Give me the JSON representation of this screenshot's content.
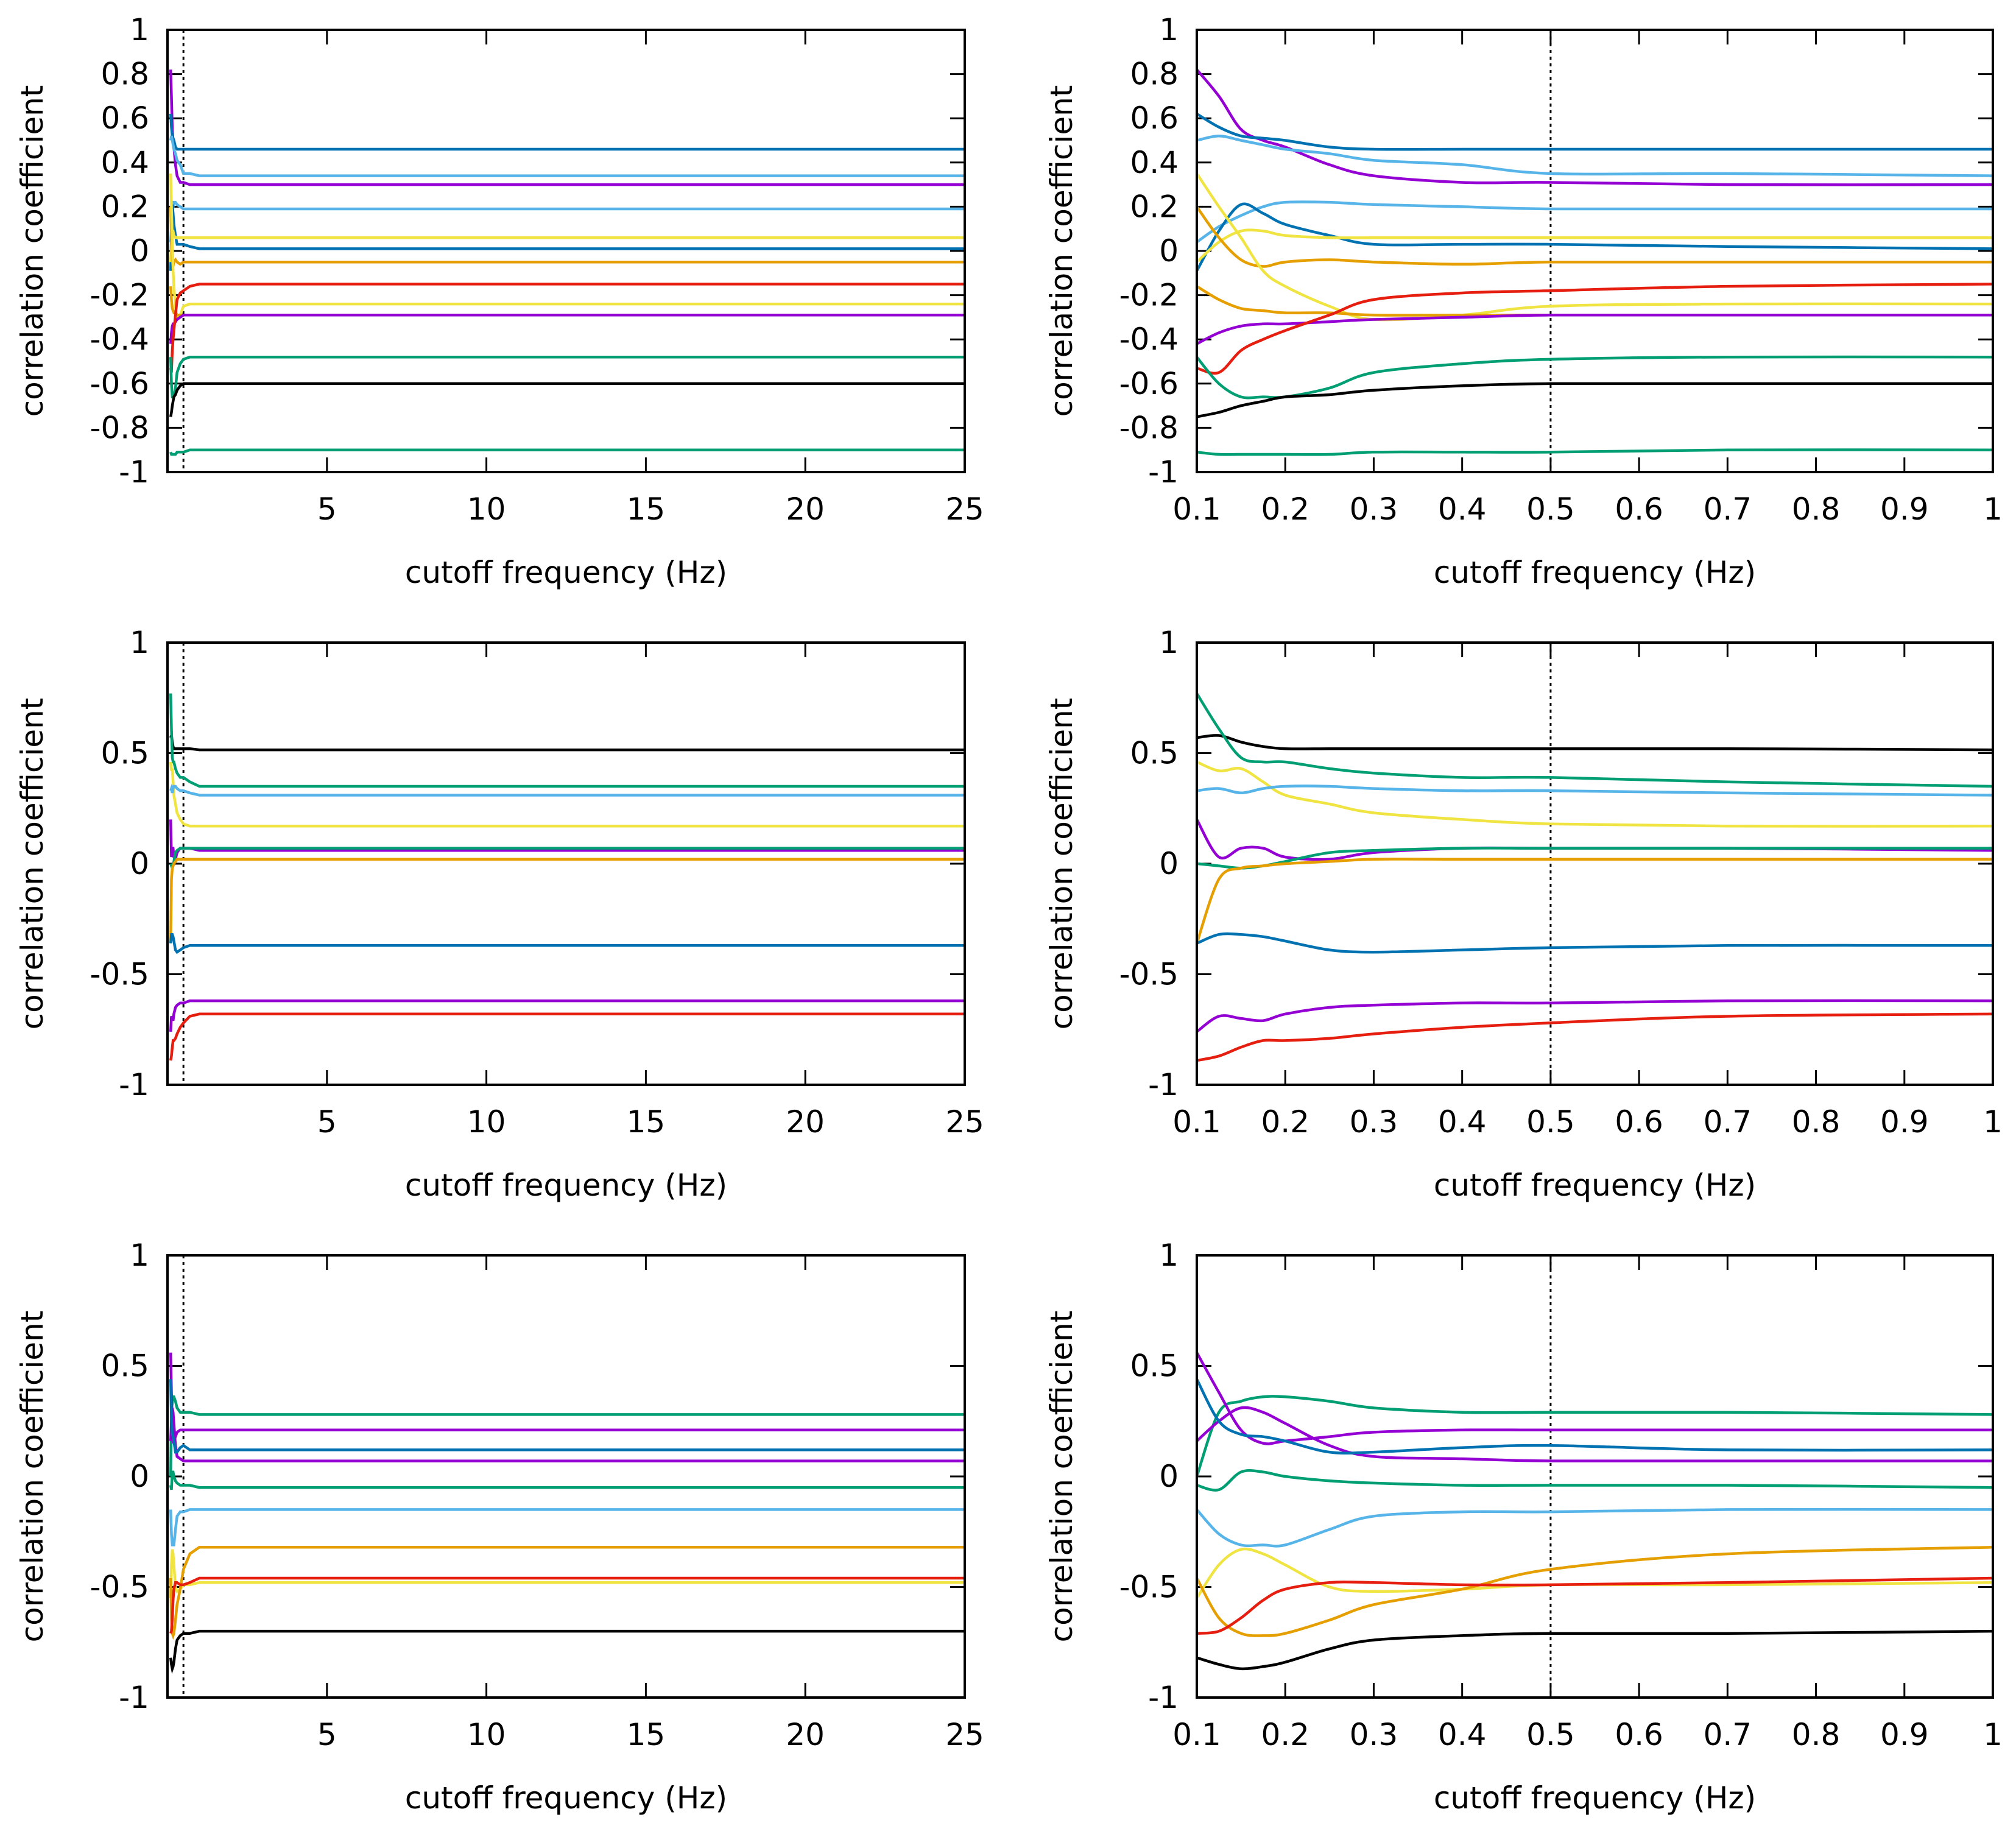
{
  "chart_data": [
    {
      "type": "line",
      "row": 1,
      "xlabel": "cutoff frequency (Hz)",
      "ylabel": "correlation coefficient",
      "ylim": [
        -1,
        1
      ],
      "yticks": [
        "-1",
        "-0.8",
        "-0.6",
        "-0.4",
        "-0.2",
        "0",
        "0.2",
        "0.4",
        "0.6",
        "0.8",
        "1"
      ],
      "panels": [
        {
          "xlim": [
            0,
            25
          ],
          "xticks": [
            "5",
            "10",
            "15",
            "20",
            "25"
          ],
          "vline": 0.5
        },
        {
          "xlim": [
            0.1,
            1
          ],
          "xticks": [
            "0.1",
            "0.2",
            "0.3",
            "0.4",
            "0.5",
            "0.6",
            "0.7",
            "0.8",
            "0.9",
            "1"
          ],
          "vline": 0.5
        }
      ],
      "x": [
        0.1,
        0.125,
        0.15,
        0.175,
        0.2,
        0.25,
        0.3,
        0.4,
        0.5,
        0.7,
        1.0
      ],
      "series": [
        {
          "color": "#9400d3",
          "y": [
            0.82,
            0.7,
            0.55,
            0.5,
            0.47,
            0.39,
            0.34,
            0.31,
            0.31,
            0.3,
            0.3
          ]
        },
        {
          "color": "#0072b2",
          "y": [
            0.62,
            0.56,
            0.52,
            0.51,
            0.5,
            0.47,
            0.46,
            0.46,
            0.46,
            0.46,
            0.46
          ]
        },
        {
          "color": "#56b4e9",
          "y": [
            0.5,
            0.52,
            0.5,
            0.48,
            0.46,
            0.44,
            0.41,
            0.39,
            0.35,
            0.35,
            0.34
          ]
        },
        {
          "color": "#56b4e9",
          "y": [
            0.04,
            0.11,
            0.16,
            0.2,
            0.22,
            0.22,
            0.21,
            0.2,
            0.19,
            0.19,
            0.19
          ]
        },
        {
          "color": "#0072b2",
          "y": [
            -0.09,
            0.09,
            0.21,
            0.17,
            0.12,
            0.07,
            0.03,
            0.03,
            0.03,
            0.02,
            0.01
          ]
        },
        {
          "color": "#f0e442",
          "y": [
            -0.05,
            0.04,
            0.09,
            0.09,
            0.07,
            0.06,
            0.06,
            0.06,
            0.06,
            0.06,
            0.06
          ]
        },
        {
          "color": "#e69f00",
          "y": [
            0.2,
            0.06,
            -0.04,
            -0.07,
            -0.05,
            -0.04,
            -0.05,
            -0.06,
            -0.05,
            -0.05,
            -0.05
          ]
        },
        {
          "color": "#f0e442",
          "y": [
            0.35,
            0.2,
            0.06,
            -0.09,
            -0.16,
            -0.25,
            -0.31,
            -0.29,
            -0.25,
            -0.24,
            -0.24
          ]
        },
        {
          "color": "#e69f00",
          "y": [
            -0.16,
            -0.22,
            -0.26,
            -0.27,
            -0.28,
            -0.28,
            -0.29,
            -0.29,
            -0.29,
            -0.29,
            -0.29
          ]
        },
        {
          "color": "#9400d3",
          "y": [
            -0.42,
            -0.37,
            -0.34,
            -0.33,
            -0.33,
            -0.32,
            -0.31,
            -0.3,
            -0.29,
            -0.29,
            -0.29
          ]
        },
        {
          "color": "#e51e10",
          "y": [
            -0.53,
            -0.55,
            -0.45,
            -0.4,
            -0.36,
            -0.29,
            -0.22,
            -0.19,
            -0.18,
            -0.16,
            -0.15
          ]
        },
        {
          "color": "#009e73",
          "y": [
            -0.48,
            -0.6,
            -0.66,
            -0.66,
            -0.66,
            -0.62,
            -0.55,
            -0.51,
            -0.49,
            -0.48,
            -0.48
          ]
        },
        {
          "color": "#000000",
          "y": [
            -0.75,
            -0.73,
            -0.7,
            -0.68,
            -0.66,
            -0.65,
            -0.63,
            -0.61,
            -0.6,
            -0.6,
            -0.6
          ]
        },
        {
          "color": "#009e73",
          "y": [
            -0.91,
            -0.92,
            -0.92,
            -0.92,
            -0.92,
            -0.92,
            -0.91,
            -0.91,
            -0.91,
            -0.9,
            -0.9
          ]
        }
      ]
    },
    {
      "type": "line",
      "row": 2,
      "xlabel": "cutoff frequency (Hz)",
      "ylabel": "correlation coefficient",
      "ylim": [
        -1,
        1
      ],
      "yticks": [
        "-1",
        "-0.5",
        "0",
        "0.5",
        "1"
      ],
      "panels": [
        {
          "xlim": [
            0,
            25
          ],
          "xticks": [
            "5",
            "10",
            "15",
            "20",
            "25"
          ],
          "vline": 0.5
        },
        {
          "xlim": [
            0.1,
            1
          ],
          "xticks": [
            "0.1",
            "0.2",
            "0.3",
            "0.4",
            "0.5",
            "0.6",
            "0.7",
            "0.8",
            "0.9",
            "1"
          ],
          "vline": 0.5
        }
      ],
      "x": [
        0.1,
        0.125,
        0.15,
        0.175,
        0.2,
        0.25,
        0.3,
        0.4,
        0.5,
        0.7,
        1.0
      ],
      "series": [
        {
          "color": "#000000",
          "y": [
            0.57,
            0.58,
            0.55,
            0.53,
            0.52,
            0.52,
            0.52,
            0.52,
            0.52,
            0.52,
            0.515
          ]
        },
        {
          "color": "#009e73",
          "y": [
            0.77,
            0.61,
            0.48,
            0.46,
            0.46,
            0.43,
            0.41,
            0.39,
            0.39,
            0.37,
            0.35
          ]
        },
        {
          "color": "#f0e442",
          "y": [
            0.46,
            0.42,
            0.43,
            0.37,
            0.31,
            0.27,
            0.23,
            0.2,
            0.18,
            0.17,
            0.17
          ]
        },
        {
          "color": "#56b4e9",
          "y": [
            0.33,
            0.34,
            0.32,
            0.34,
            0.35,
            0.35,
            0.34,
            0.33,
            0.33,
            0.32,
            0.31
          ]
        },
        {
          "color": "#9400d3",
          "y": [
            0.2,
            0.03,
            0.07,
            0.07,
            0.03,
            0.02,
            0.05,
            0.07,
            0.07,
            0.07,
            0.06
          ]
        },
        {
          "color": "#009e73",
          "y": [
            0.0,
            -0.01,
            -0.02,
            -0.01,
            0.01,
            0.05,
            0.06,
            0.07,
            0.07,
            0.07,
            0.07
          ]
        },
        {
          "color": "#e69f00",
          "y": [
            -0.36,
            -0.07,
            -0.02,
            -0.01,
            0.0,
            0.01,
            0.02,
            0.02,
            0.02,
            0.02,
            0.02
          ]
        },
        {
          "color": "#0072b2",
          "y": [
            -0.36,
            -0.32,
            -0.32,
            -0.33,
            -0.35,
            -0.39,
            -0.4,
            -0.39,
            -0.38,
            -0.37,
            -0.37
          ]
        },
        {
          "color": "#9400d3",
          "y": [
            -0.76,
            -0.69,
            -0.7,
            -0.71,
            -0.68,
            -0.65,
            -0.64,
            -0.63,
            -0.63,
            -0.62,
            -0.62
          ]
        },
        {
          "color": "#e51e10",
          "y": [
            -0.89,
            -0.87,
            -0.83,
            -0.8,
            -0.8,
            -0.79,
            -0.77,
            -0.74,
            -0.72,
            -0.69,
            -0.68
          ]
        }
      ]
    },
    {
      "type": "line",
      "row": 3,
      "xlabel": "cutoff frequency (Hz)",
      "ylabel": "correlation coefficient",
      "ylim": [
        -1,
        1
      ],
      "yticks": [
        "-1",
        "-0.5",
        "0",
        "0.5",
        "1"
      ],
      "panels": [
        {
          "xlim": [
            0,
            25
          ],
          "xticks": [
            "5",
            "10",
            "15",
            "20",
            "25"
          ],
          "vline": 0.5
        },
        {
          "xlim": [
            0.1,
            1
          ],
          "xticks": [
            "0.1",
            "0.2",
            "0.3",
            "0.4",
            "0.5",
            "0.6",
            "0.7",
            "0.8",
            "0.9",
            "1"
          ],
          "vline": 0.5
        }
      ],
      "x": [
        0.1,
        0.125,
        0.15,
        0.175,
        0.2,
        0.25,
        0.3,
        0.4,
        0.5,
        0.7,
        1.0
      ],
      "series": [
        {
          "color": "#009e73",
          "y": [
            0.0,
            0.29,
            0.34,
            0.36,
            0.36,
            0.34,
            0.31,
            0.29,
            0.29,
            0.29,
            0.28
          ]
        },
        {
          "color": "#9400d3",
          "y": [
            0.56,
            0.38,
            0.21,
            0.15,
            0.16,
            0.18,
            0.2,
            0.21,
            0.21,
            0.21,
            0.21
          ]
        },
        {
          "color": "#9400d3",
          "y": [
            0.16,
            0.25,
            0.31,
            0.29,
            0.24,
            0.14,
            0.09,
            0.08,
            0.07,
            0.07,
            0.07
          ]
        },
        {
          "color": "#0072b2",
          "y": [
            0.44,
            0.25,
            0.19,
            0.18,
            0.16,
            0.11,
            0.11,
            0.13,
            0.14,
            0.12,
            0.12
          ]
        },
        {
          "color": "#009e73",
          "y": [
            -0.04,
            -0.06,
            0.02,
            0.02,
            0.0,
            -0.02,
            -0.03,
            -0.04,
            -0.04,
            -0.04,
            -0.05
          ]
        },
        {
          "color": "#56b4e9",
          "y": [
            -0.15,
            -0.26,
            -0.31,
            -0.31,
            -0.31,
            -0.24,
            -0.18,
            -0.16,
            -0.16,
            -0.15,
            -0.15
          ]
        },
        {
          "color": "#f0e442",
          "y": [
            -0.55,
            -0.4,
            -0.33,
            -0.35,
            -0.4,
            -0.5,
            -0.52,
            -0.51,
            -0.49,
            -0.49,
            -0.48
          ]
        },
        {
          "color": "#e69f00",
          "y": [
            -0.46,
            -0.64,
            -0.71,
            -0.72,
            -0.71,
            -0.65,
            -0.58,
            -0.51,
            -0.42,
            -0.35,
            -0.32
          ]
        },
        {
          "color": "#e51e10",
          "y": [
            -0.71,
            -0.7,
            -0.64,
            -0.56,
            -0.51,
            -0.48,
            -0.48,
            -0.49,
            -0.49,
            -0.48,
            -0.46
          ]
        },
        {
          "color": "#000000",
          "y": [
            -0.82,
            -0.85,
            -0.87,
            -0.86,
            -0.84,
            -0.78,
            -0.74,
            -0.72,
            -0.71,
            -0.71,
            -0.7
          ]
        }
      ]
    }
  ]
}
